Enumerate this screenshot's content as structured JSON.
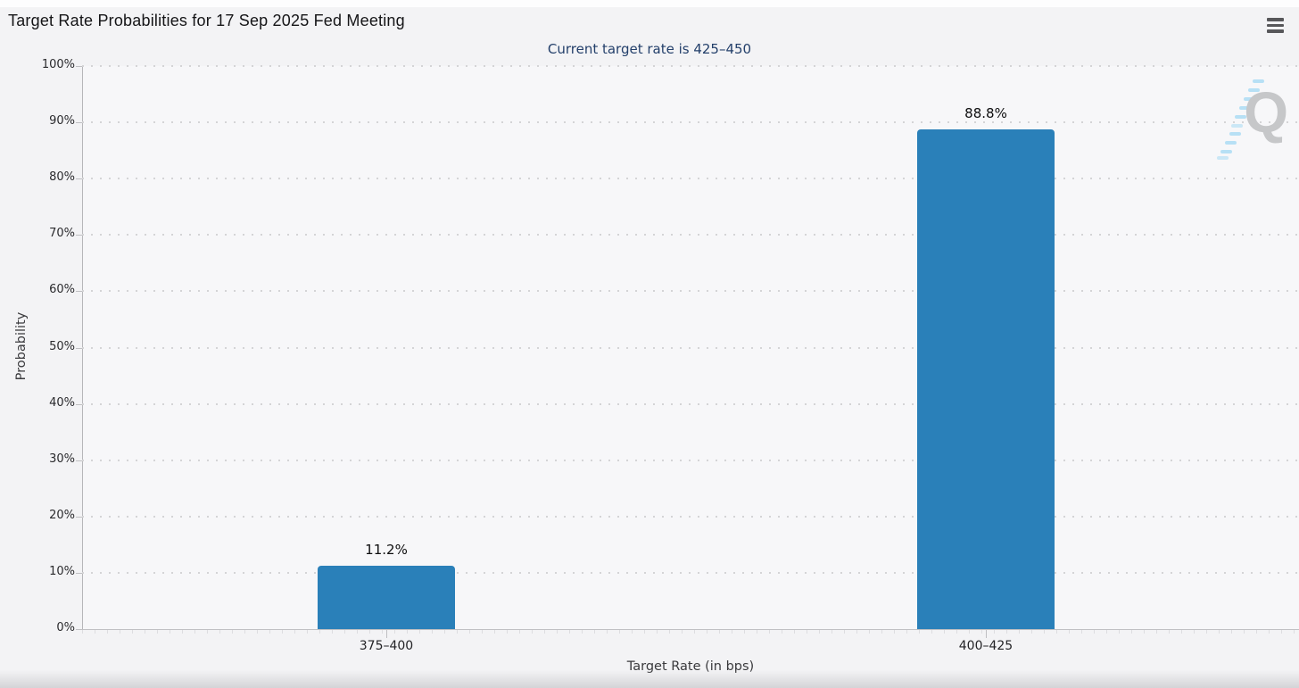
{
  "chart_data": {
    "type": "bar",
    "title": "Target Rate Probabilities for 17 Sep 2025 Fed Meeting",
    "subtitle": "Current target rate is 425–450",
    "categories": [
      "375–400",
      "400–425"
    ],
    "values": [
      11.2,
      88.8
    ],
    "value_labels": [
      "11.2%",
      "88.8%"
    ],
    "xlabel": "Target Rate (in bps)",
    "ylabel": "Probability",
    "ylim": [
      0,
      100
    ],
    "ytick_step": 10,
    "ytick_labels": [
      "0%",
      "10%",
      "20%",
      "30%",
      "40%",
      "50%",
      "60%",
      "70%",
      "80%",
      "90%",
      "100%"
    ],
    "grid": "horizontal-dotted",
    "legend": "none",
    "bar_color": "#2a80b9"
  },
  "colors": {
    "bar": "#2a80b9",
    "subtitle_text": "#24406b",
    "background": "#f3f3f5",
    "watermark_gray": "#c6c7c9",
    "watermark_blue": "#abdcf4"
  },
  "watermark": {
    "letter": "Q"
  }
}
